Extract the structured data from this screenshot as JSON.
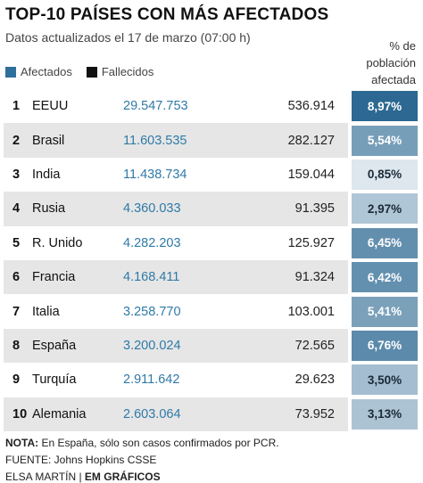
{
  "header": {
    "title": "TOP-10 PAÍSES CON MÁS AFECTADOS",
    "subtitle": "Datos actualizados el 17 de marzo (07:00 h)",
    "pct_header": [
      "% de",
      "población",
      "afectada"
    ]
  },
  "legend": {
    "affected_label": "Afectados",
    "affected_color": "#2f6f9b",
    "deaths_label": "Fallecidos",
    "deaths_color": "#111111"
  },
  "chart_data": {
    "type": "table",
    "columns": [
      "",
      "",
      "Afectados",
      "Fallecidos",
      "% de población afectada"
    ],
    "rows": [
      {
        "rank": "1",
        "country": "EEUU",
        "affected": "29.547.753",
        "deaths": "536.914",
        "pct": "8,97%",
        "pct_value": 8.97
      },
      {
        "rank": "2",
        "country": "Brasil",
        "affected": "11.603.535",
        "deaths": "282.127",
        "pct": "5,54%",
        "pct_value": 5.54
      },
      {
        "rank": "3",
        "country": "India",
        "affected": "11.438.734",
        "deaths": "159.044",
        "pct": "0,85%",
        "pct_value": 0.85
      },
      {
        "rank": "4",
        "country": "Rusia",
        "affected": "4.360.033",
        "deaths": "91.395",
        "pct": "2,97%",
        "pct_value": 2.97
      },
      {
        "rank": "5",
        "country": "R. Unido",
        "affected": "4.282.203",
        "deaths": "125.927",
        "pct": "6,45%",
        "pct_value": 6.45
      },
      {
        "rank": "6",
        "country": "Francia",
        "affected": "4.168.411",
        "deaths": "91.324",
        "pct": "6,42%",
        "pct_value": 6.42
      },
      {
        "rank": "7",
        "country": "Italia",
        "affected": "3.258.770",
        "deaths": "103.001",
        "pct": "5,41%",
        "pct_value": 5.41
      },
      {
        "rank": "8",
        "country": "España",
        "affected": "3.200.024",
        "deaths": "72.565",
        "pct": "6,76%",
        "pct_value": 6.76
      },
      {
        "rank": "9",
        "country": "Turquía",
        "affected": "2.911.642",
        "deaths": "29.623",
        "pct": "3,50%",
        "pct_value": 3.5
      },
      {
        "rank": "10",
        "country": "Alemania",
        "affected": "2.603.064",
        "deaths": "73.952",
        "pct": "3,13%",
        "pct_value": 3.13
      }
    ]
  },
  "footer": {
    "note_label": "NOTA:",
    "note_text": " En España, sólo son casos confirmados por PCR.",
    "source": "FUENTE: Johns Hopkins CSSE",
    "author": "ELSA MARTÍN | ",
    "brand": "EM GRÁFICOS"
  }
}
